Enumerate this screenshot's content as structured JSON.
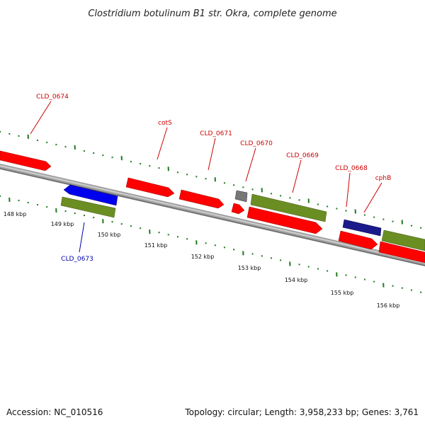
{
  "title": "Clostridium botulinum B1 str. Okra, complete genome",
  "footer": {
    "accession": "Accession: NC_010516",
    "summary": "Topology: circular; Length: 3,958,233 bp; Genes: 3,761"
  },
  "colors": {
    "backbone": "#8c8c8c",
    "tick": "#1c7a1c",
    "red_gene": "#ff0000",
    "olive_gene": "#6b8e23",
    "blue_gene": "#0000ee",
    "navy_gene": "#1a1a8c",
    "gray_gene": "#707070",
    "red_label": "#cc0000",
    "blue_label": "#0000aa"
  },
  "kbp_labels": [
    "148 kbp",
    "149 kbp",
    "150 kbp",
    "151 kbp",
    "152 kbp",
    "153 kbp",
    "154 kbp",
    "155 kbp",
    "156 kbp"
  ],
  "gene_labels": [
    {
      "text": "CLD_0674",
      "color": "red"
    },
    {
      "text": "cotS",
      "color": "red"
    },
    {
      "text": "CLD_0671",
      "color": "red"
    },
    {
      "text": "CLD_0670",
      "color": "red"
    },
    {
      "text": "CLD_0669",
      "color": "red"
    },
    {
      "text": "CLD_0668",
      "color": "red"
    },
    {
      "text": "cphB",
      "color": "red"
    },
    {
      "text": "CLD_0673",
      "color": "blue"
    }
  ]
}
